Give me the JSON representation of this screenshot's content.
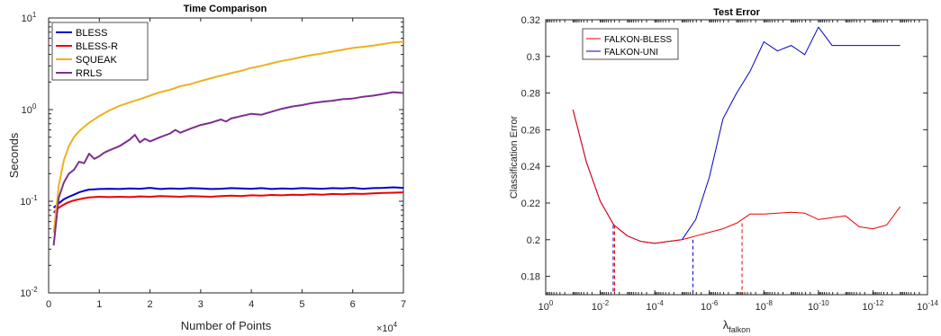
{
  "chart_data": [
    {
      "type": "line",
      "title": "Time Comparison",
      "xlabel": "Number of Points",
      "ylabel": "Seconds",
      "xlim": [
        0,
        70000
      ],
      "ylim": [
        0.01,
        10
      ],
      "yscale": "log",
      "x_ticks": [
        0,
        1,
        2,
        3,
        4,
        5,
        6,
        7
      ],
      "x_multiplier_label": "×10",
      "x_multiplier_exp": "4",
      "y_ticks": [
        {
          "base": "10",
          "exp": "-2",
          "value": 0.01
        },
        {
          "base": "10",
          "exp": "-1",
          "value": 0.1
        },
        {
          "base": "10",
          "exp": "0",
          "value": 1
        },
        {
          "base": "10",
          "exp": "1",
          "value": 10
        }
      ],
      "legend_position": "top-left",
      "grid": false,
      "series": [
        {
          "name": "BLESS",
          "color": "#0000CC",
          "x": [
            1000,
            2000,
            3000,
            4000,
            5000,
            6000,
            7000,
            8000,
            9000,
            10000,
            12000,
            14000,
            16000,
            18000,
            20000,
            22000,
            24000,
            26000,
            28000,
            30000,
            32000,
            34000,
            36000,
            38000,
            40000,
            42000,
            44000,
            46000,
            48000,
            50000,
            52000,
            54000,
            56000,
            58000,
            60000,
            62000,
            64000,
            66000,
            68000,
            70000
          ],
          "y": [
            0.085,
            0.095,
            0.105,
            0.112,
            0.118,
            0.125,
            0.13,
            0.134,
            0.135,
            0.136,
            0.137,
            0.136,
            0.138,
            0.137,
            0.14,
            0.136,
            0.138,
            0.137,
            0.139,
            0.138,
            0.136,
            0.137,
            0.139,
            0.138,
            0.137,
            0.139,
            0.136,
            0.138,
            0.137,
            0.139,
            0.138,
            0.137,
            0.139,
            0.138,
            0.14,
            0.137,
            0.139,
            0.14,
            0.142,
            0.14
          ]
        },
        {
          "name": "BLESS-R",
          "color": "#EE0000",
          "x": [
            1000,
            2000,
            3000,
            4000,
            5000,
            6000,
            7000,
            8000,
            9000,
            10000,
            12000,
            14000,
            16000,
            18000,
            20000,
            22000,
            24000,
            26000,
            28000,
            30000,
            32000,
            34000,
            36000,
            38000,
            40000,
            42000,
            44000,
            46000,
            48000,
            50000,
            52000,
            54000,
            56000,
            58000,
            60000,
            62000,
            64000,
            66000,
            68000,
            70000
          ],
          "y": [
            0.075,
            0.085,
            0.092,
            0.098,
            0.102,
            0.105,
            0.108,
            0.11,
            0.111,
            0.112,
            0.111,
            0.112,
            0.111,
            0.113,
            0.112,
            0.114,
            0.113,
            0.112,
            0.114,
            0.113,
            0.112,
            0.114,
            0.115,
            0.114,
            0.116,
            0.115,
            0.117,
            0.116,
            0.118,
            0.117,
            0.119,
            0.118,
            0.12,
            0.119,
            0.121,
            0.12,
            0.122,
            0.123,
            0.124,
            0.125
          ]
        },
        {
          "name": "SQUEAK",
          "color": "#EDB120",
          "x": [
            1000,
            2000,
            3000,
            4000,
            5000,
            6000,
            7000,
            8000,
            10000,
            12000,
            14000,
            16000,
            18000,
            20000,
            22000,
            24000,
            26000,
            28000,
            30000,
            32000,
            34000,
            36000,
            38000,
            40000,
            42000,
            44000,
            46000,
            48000,
            50000,
            52000,
            54000,
            56000,
            58000,
            60000,
            62000,
            64000,
            66000,
            68000,
            70000
          ],
          "y": [
            0.045,
            0.15,
            0.28,
            0.4,
            0.5,
            0.58,
            0.65,
            0.72,
            0.85,
            0.98,
            1.1,
            1.2,
            1.3,
            1.42,
            1.55,
            1.65,
            1.8,
            1.9,
            2.05,
            2.2,
            2.35,
            2.5,
            2.65,
            2.85,
            3.0,
            3.2,
            3.4,
            3.55,
            3.75,
            3.95,
            4.1,
            4.3,
            4.5,
            4.7,
            4.85,
            5.0,
            5.2,
            5.4,
            5.5
          ]
        },
        {
          "name": "RRLS",
          "color": "#7E2F8E",
          "x": [
            1000,
            2000,
            3000,
            4000,
            5000,
            6000,
            7000,
            8000,
            9000,
            10000,
            11000,
            12000,
            14000,
            16000,
            17000,
            18000,
            19000,
            20000,
            22000,
            24000,
            25000,
            26000,
            28000,
            30000,
            32000,
            34000,
            35000,
            36000,
            38000,
            40000,
            42000,
            44000,
            46000,
            48000,
            50000,
            52000,
            54000,
            56000,
            58000,
            60000,
            62000,
            64000,
            66000,
            68000,
            70000
          ],
          "y": [
            0.033,
            0.11,
            0.16,
            0.2,
            0.22,
            0.27,
            0.26,
            0.33,
            0.29,
            0.31,
            0.34,
            0.36,
            0.4,
            0.47,
            0.53,
            0.44,
            0.48,
            0.45,
            0.5,
            0.55,
            0.6,
            0.56,
            0.62,
            0.68,
            0.72,
            0.78,
            0.74,
            0.8,
            0.85,
            0.9,
            0.88,
            0.95,
            1.02,
            1.08,
            1.12,
            1.18,
            1.22,
            1.25,
            1.3,
            1.32,
            1.38,
            1.42,
            1.48,
            1.55,
            1.52
          ]
        }
      ]
    },
    {
      "type": "line",
      "title": "Test Error",
      "xlabel": "λ",
      "xlabel_sub": "falkon",
      "ylabel": "Classification Error",
      "xscale": "log",
      "x_reversed": true,
      "xlim_exp": [
        0,
        -14
      ],
      "ylim": [
        0.17,
        0.32
      ],
      "x_ticks": [
        {
          "base": "10",
          "exp": "0",
          "e": 0
        },
        {
          "base": "10",
          "exp": "-2",
          "e": -2
        },
        {
          "base": "10",
          "exp": "-4",
          "e": -4
        },
        {
          "base": "10",
          "exp": "-6",
          "e": -6
        },
        {
          "base": "10",
          "exp": "-8",
          "e": -8
        },
        {
          "base": "10",
          "exp": "-10",
          "e": -10
        },
        {
          "base": "10",
          "exp": "-12",
          "e": -12
        },
        {
          "base": "10",
          "exp": "-14",
          "e": -14
        }
      ],
      "y_ticks": [
        "0.18",
        "0.2",
        "0.22",
        "0.24",
        "0.26",
        "0.28",
        "0.3",
        "0.32"
      ],
      "y_tick_values": [
        0.18,
        0.2,
        0.22,
        0.24,
        0.26,
        0.28,
        0.3,
        0.32
      ],
      "legend_position": "top-left",
      "grid": false,
      "series": [
        {
          "name": "FALKON-BLESS",
          "color": "#EE0000",
          "x_exp": [
            -1,
            -1.5,
            -2,
            -2.5,
            -3,
            -3.5,
            -4,
            -4.5,
            -5,
            -5.5,
            -6,
            -6.5,
            -7,
            -7.5,
            -8,
            -8.5,
            -9,
            -9.5,
            -10,
            -10.5,
            -11,
            -11.5,
            -12,
            -12.5,
            -13
          ],
          "y": [
            0.271,
            0.242,
            0.221,
            0.208,
            0.202,
            0.199,
            0.198,
            0.199,
            0.2,
            0.202,
            0.204,
            0.206,
            0.209,
            0.214,
            0.214,
            0.2145,
            0.215,
            0.2145,
            0.211,
            0.212,
            0.213,
            0.207,
            0.206,
            0.208,
            0.218
          ]
        },
        {
          "name": "FALKON-UNI",
          "color": "#0000CC",
          "x_exp": [
            -1,
            -1.5,
            -2,
            -2.5,
            -3,
            -3.5,
            -4,
            -4.5,
            -5,
            -5.5,
            -6,
            -6.5,
            -7,
            -7.5,
            -8,
            -8.5,
            -9,
            -9.5,
            -10,
            -10.5,
            -11,
            -11.5,
            -12,
            -12.5,
            -13
          ],
          "y": [
            0.271,
            0.242,
            0.221,
            0.208,
            0.202,
            0.199,
            0.198,
            0.199,
            0.2,
            0.211,
            0.234,
            0.266,
            0.28,
            0.292,
            0.308,
            0.303,
            0.306,
            0.301,
            0.316,
            0.306,
            0.306,
            0.306,
            0.306,
            0.306,
            0.306
          ]
        }
      ],
      "markers": [
        {
          "x_exp": -2.5,
          "y": 0.208,
          "colors": [
            "#0000CC",
            "#EE0000"
          ]
        },
        {
          "x_exp": -5.4,
          "y": 0.2,
          "colors": [
            "#0000CC"
          ]
        },
        {
          "x_exp": -7.2,
          "y": 0.209,
          "colors": [
            "#EE0000"
          ]
        }
      ]
    }
  ]
}
